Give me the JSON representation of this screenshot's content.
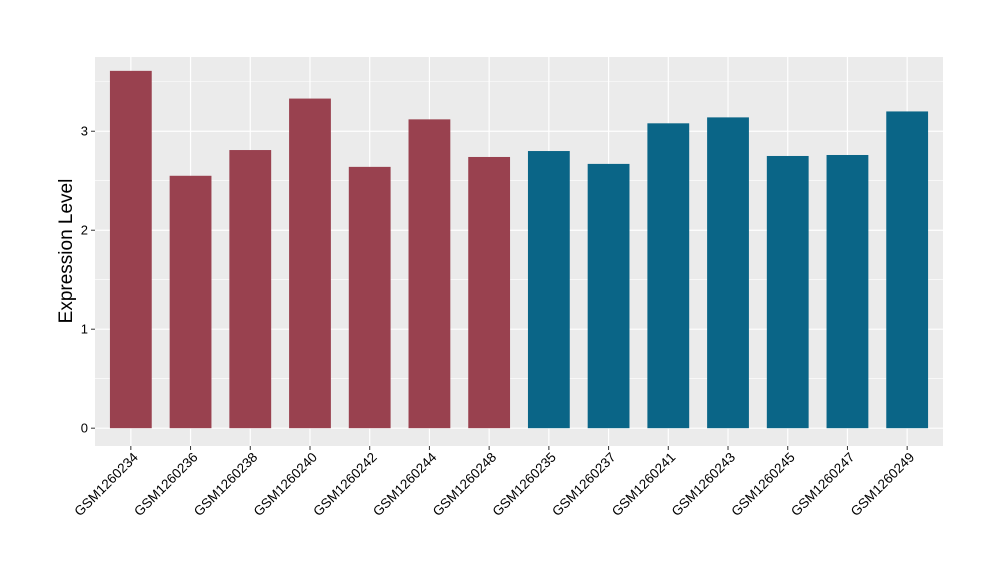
{
  "chart_data": {
    "type": "bar",
    "title": "",
    "xlabel": "",
    "ylabel": "Expression Level",
    "ylim": [
      -0.18,
      3.75
    ],
    "yticks": [
      0,
      1,
      2,
      3
    ],
    "grid": true,
    "legend": "none",
    "categories": [
      "GSM1260234",
      "GSM1260236",
      "GSM1260238",
      "GSM1260240",
      "GSM1260242",
      "GSM1260244",
      "GSM1260248",
      "GSM1260235",
      "GSM1260237",
      "GSM1260241",
      "GSM1260243",
      "GSM1260245",
      "GSM1260247",
      "GSM1260249"
    ],
    "values": [
      3.61,
      2.55,
      2.81,
      3.33,
      2.64,
      3.12,
      2.74,
      2.8,
      2.67,
      3.08,
      3.14,
      2.75,
      2.76,
      3.2
    ],
    "groups": [
      {
        "color": "#99414f",
        "indices": [
          0,
          1,
          2,
          3,
          4,
          5,
          6
        ]
      },
      {
        "color": "#0a6587",
        "indices": [
          7,
          8,
          9,
          10,
          11,
          12,
          13
        ]
      }
    ],
    "panel_background": "#ebebeb",
    "grid_color": "#ffffff"
  }
}
